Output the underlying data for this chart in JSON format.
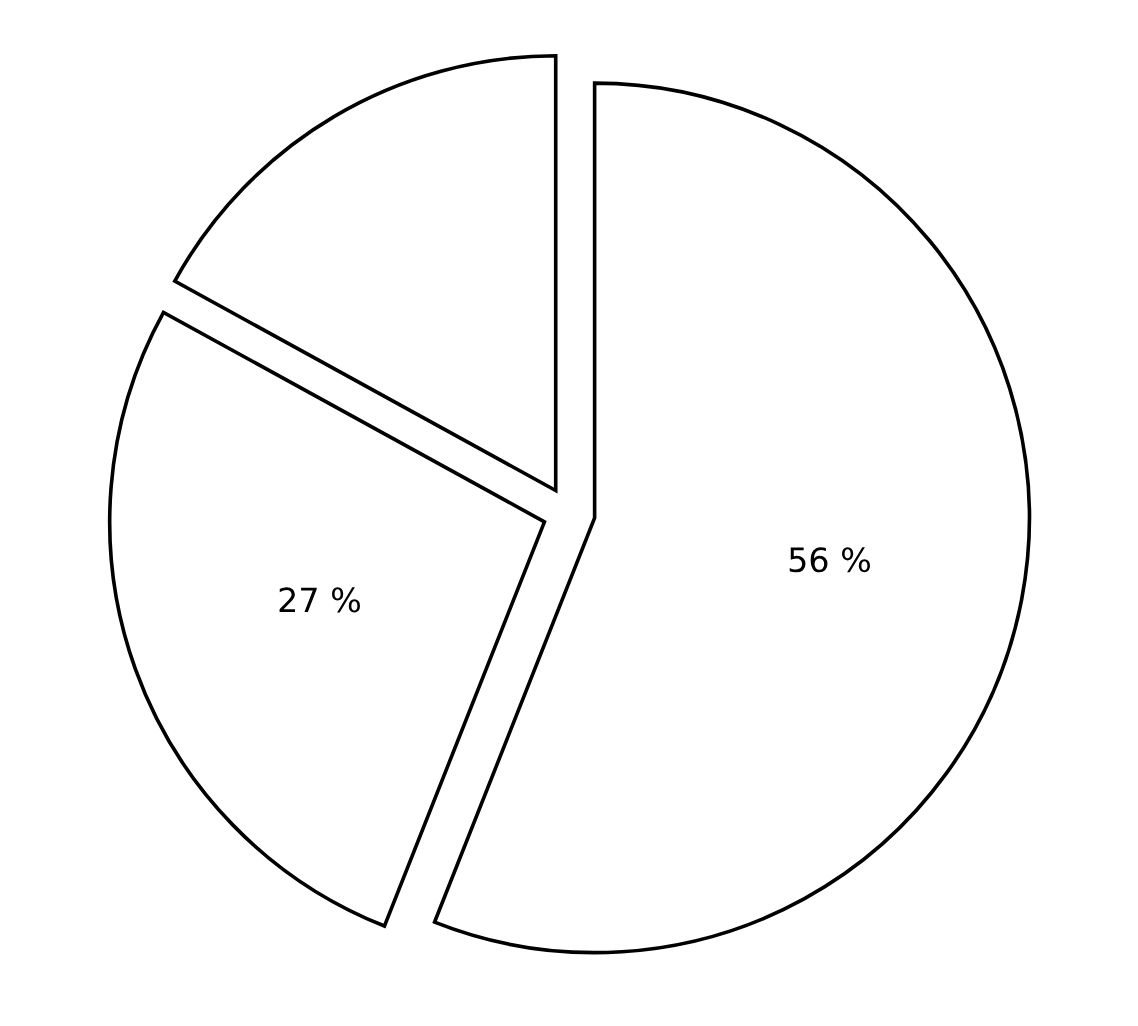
{
  "chart_data": {
    "type": "pie",
    "categories": [
      null,
      null,
      null
    ],
    "values": [
      56,
      27,
      17
    ],
    "colors": [
      "#ffffff",
      "#ffffff",
      "#ffffff"
    ],
    "value_labels": [
      "56 %",
      "27 %",
      null
    ]
  }
}
